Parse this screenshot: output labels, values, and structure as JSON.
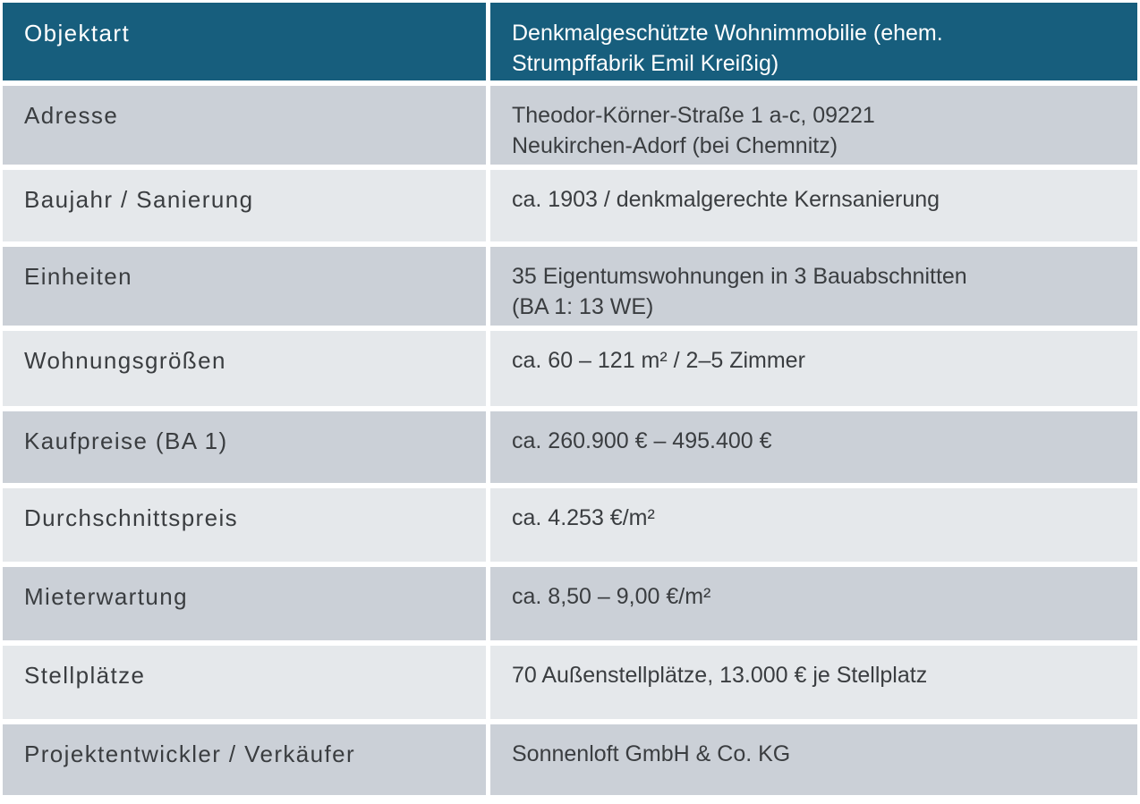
{
  "table": {
    "header": {
      "label": "Objektart",
      "value": "Denkmalgeschützte Wohnimmobilie (ehem.\nStrumpffabrik Emil Kreißig)"
    },
    "rows": [
      {
        "label": "Adresse",
        "value": "Theodor-Körner-Straße 1 a-c, 09221\nNeukirchen-Adorf (bei Chemnitz)"
      },
      {
        "label": "Baujahr / Sanierung",
        "value": "ca. 1903 / denkmalgerechte Kernsanierung"
      },
      {
        "label": "Einheiten",
        "value": "35 Eigentumswohnungen in 3 Bauabschnitten\n(BA 1: 13 WE)"
      },
      {
        "label": "Wohnungsgrößen",
        "value": "ca. 60 – 121 m² / 2–5 Zimmer"
      },
      {
        "label": "Kaufpreise (BA 1)",
        "value": "ca. 260.900 € – 495.400 €"
      },
      {
        "label": "Durchschnittspreis",
        "value": "ca. 4.253 €/m²"
      },
      {
        "label": "Mieterwartung",
        "value": "ca. 8,50 – 9,00 €/m²"
      },
      {
        "label": "Stellplätze",
        "value": "70 Außenstellplätze, 13.000 € je Stellplatz"
      },
      {
        "label": "Projektentwickler / Verkäufer",
        "value": "Sonnenloft GmbH & Co. KG"
      }
    ]
  },
  "colors": {
    "header_bg": "#175E7D",
    "header_text": "#FFFFFF",
    "row_dark": "#CBD0D7",
    "row_light": "#E5E8EB",
    "body_text": "#3A3D40",
    "page_bg": "#FFFFFF"
  }
}
